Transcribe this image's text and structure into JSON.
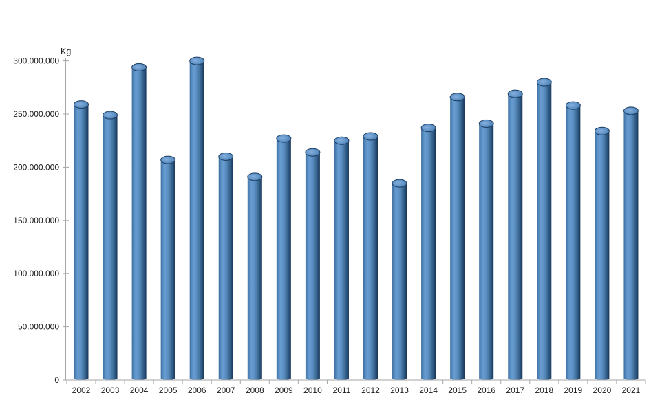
{
  "page": {
    "background": "#ffffff"
  },
  "chart_data": {
    "type": "bar",
    "title": "",
    "xlabel": "",
    "ylabel": "Kg",
    "legend_position": "none",
    "gridlines": false,
    "bar_style": "cylinder",
    "categories": [
      "2002",
      "2003",
      "2004",
      "2005",
      "2006",
      "2007",
      "2008",
      "2009",
      "2010",
      "2011",
      "2012",
      "2013",
      "2014",
      "2015",
      "2016",
      "2017",
      "2018",
      "2019",
      "2020",
      "2021"
    ],
    "series": [
      {
        "name": "Kg",
        "values": [
          259000000,
          249000000,
          294000000,
          207000000,
          300000000,
          210000000,
          191000000,
          227000000,
          214000000,
          225000000,
          229000000,
          185000000,
          237000000,
          266000000,
          241000000,
          269000000,
          280000000,
          258000000,
          234000000,
          253000000
        ]
      }
    ],
    "y_axis": {
      "min": 0,
      "max": 300000000,
      "step": 50000000,
      "tick_labels": [
        "0",
        "50.000.000",
        "100.000.000",
        "150.000.000",
        "200.000.000",
        "250.000.000",
        "300.000.000"
      ]
    },
    "colors": {
      "bar_base": "#4F81BD",
      "bar_edge_left": "#3E6C9D",
      "bar_highlight": "#699DD1",
      "bar_mid": "#5A8EC2",
      "bar_shade": "#2A547F",
      "bar_edge_right": "#1A3655",
      "cap_light": "#85AFDF",
      "cap_mid": "#5F92C5",
      "cap_dark": "#3A6A9C",
      "cap_stroke": "#1D3E63",
      "axis_line": "#A6A6A6",
      "label_text": "#1A1A1A"
    }
  }
}
